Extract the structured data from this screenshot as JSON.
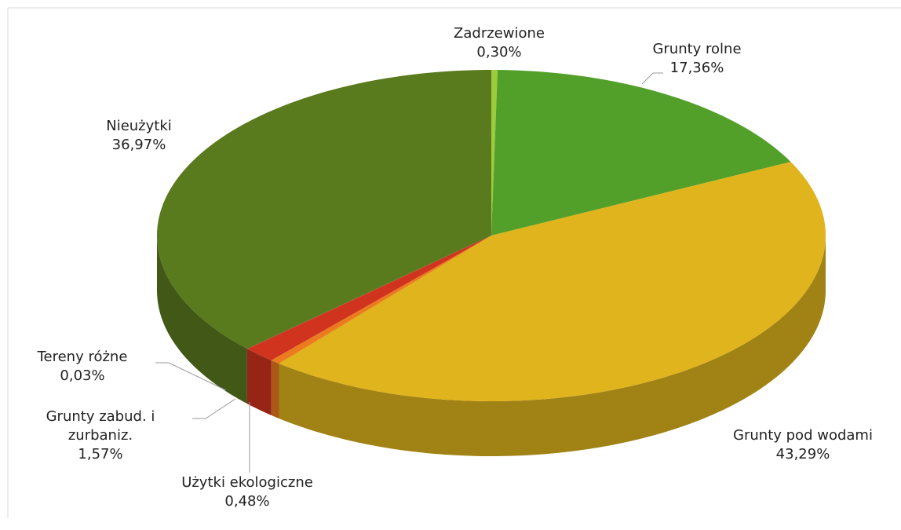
{
  "chart_data": {
    "type": "pie",
    "categories": [
      "Zadrzewione",
      "Grunty rolne",
      "Grunty pod wodami",
      "Użytki ekologiczne",
      "Grunty zabud. i zurbaniz.",
      "Tereny różne",
      "Nieużytki"
    ],
    "values": [
      0.3,
      17.36,
      43.29,
      0.48,
      1.57,
      0.03,
      36.97
    ],
    "value_labels": [
      "0,30%",
      "17,36%",
      "43,29%",
      "0,48%",
      "1,57%",
      "0,03%",
      "36,97%"
    ],
    "colors": [
      "#9ccc3c",
      "#52a02a",
      "#e0b41c",
      "#ec7a1e",
      "#d0341f",
      "#a8281a",
      "#5a7a1e"
    ]
  }
}
